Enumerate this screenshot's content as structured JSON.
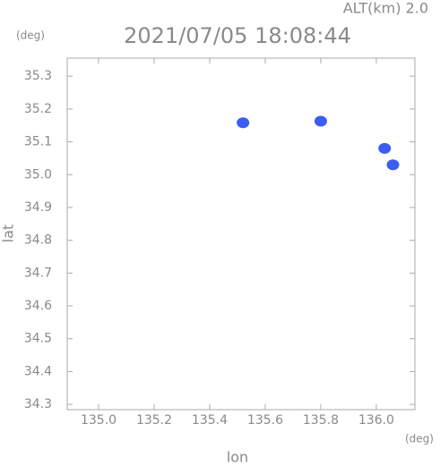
{
  "chart_data": {
    "type": "scatter",
    "title": "2021/07/05 18:08:44",
    "subtitle": "ALT(km) 2.0",
    "y_unit": "(deg)",
    "x_unit": "(deg)",
    "xlabel": "lon",
    "ylabel": "lat",
    "x": [
      135.52,
      135.8,
      136.03,
      136.06
    ],
    "values": [
      35.158,
      35.163,
      35.08,
      35.03
    ],
    "color": "#3d5cf2",
    "xlim": [
      134.887,
      136.139
    ],
    "ylim": [
      34.284,
      35.355
    ],
    "xticks": [
      {
        "value": 135,
        "label": "135.0"
      },
      135.2,
      135.4,
      135.6,
      135.8,
      {
        "value": 136,
        "label": "136.0"
      }
    ],
    "yticks": [
      34.3,
      34.4,
      34.5,
      34.6,
      34.7,
      34.8,
      34.9,
      {
        "value": 35,
        "label": "35.0"
      },
      35.1,
      35.2,
      35.3
    ]
  }
}
